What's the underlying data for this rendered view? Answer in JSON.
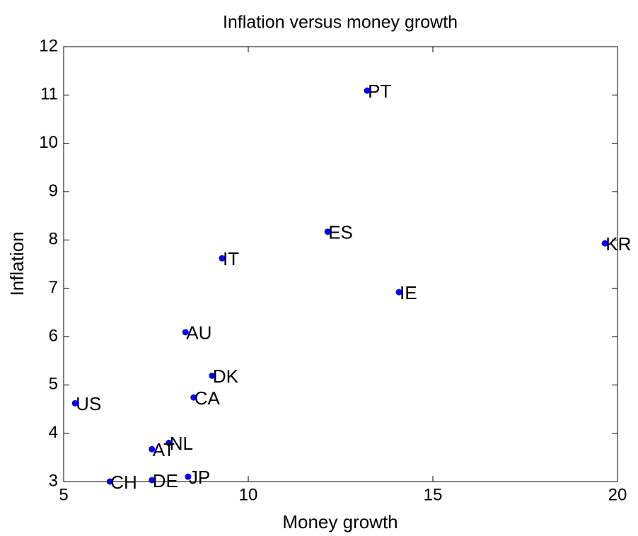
{
  "chart_data": {
    "type": "scatter",
    "title": "Inflation versus money growth",
    "x_label": "Money growth",
    "y_label": "Inflation",
    "labels": [
      "PT",
      "ES",
      "KR",
      "IT",
      "IE",
      "AU",
      "DK",
      "CA",
      "US",
      "NL",
      "AT",
      "JP",
      "DE",
      "CH"
    ],
    "x": [
      13.22,
      12.15,
      19.66,
      9.29,
      14.08,
      8.3,
      9.02,
      8.52,
      5.31,
      7.85,
      7.39,
      8.37,
      7.39,
      6.25
    ],
    "y": [
      11.09,
      8.17,
      7.93,
      7.62,
      6.92,
      6.09,
      5.19,
      4.74,
      4.62,
      3.8,
      3.67,
      3.1,
      3.03,
      3.0
    ],
    "color": "#0000ff",
    "xlim": [
      5,
      20
    ],
    "ylim": [
      3,
      12
    ],
    "xticks": [
      5,
      10,
      15,
      20
    ],
    "yticks": [
      3,
      4,
      5,
      6,
      7,
      8,
      9,
      10,
      11,
      12
    ],
    "grid": false
  }
}
